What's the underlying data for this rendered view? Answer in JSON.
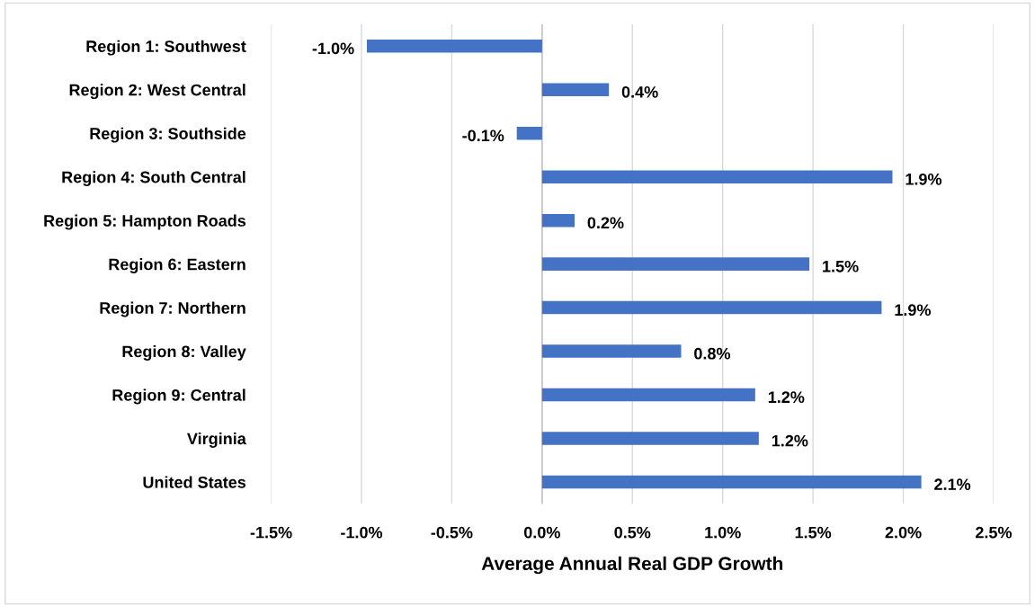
{
  "chart_data": {
    "type": "bar",
    "orientation": "horizontal",
    "xlabel": "Average Annual Real GDP Growth",
    "categories": [
      "Region 1: Southwest",
      "Region 2: West Central",
      "Region 3: Southside",
      "Region 4: South Central",
      "Region 5: Hampton Roads",
      "Region 6: Eastern",
      "Region 7: Northern",
      "Region 8: Valley",
      "Region 9: Central",
      "Virginia",
      "United States"
    ],
    "values": [
      -0.97,
      0.37,
      -0.14,
      1.94,
      0.18,
      1.48,
      1.88,
      0.77,
      1.18,
      1.2,
      2.1
    ],
    "value_labels": [
      "-1.0%",
      "0.4%",
      "-0.1%",
      "1.9%",
      "0.2%",
      "1.5%",
      "1.9%",
      "0.8%",
      "1.2%",
      "1.2%",
      "2.1%"
    ],
    "color": "#4472c4",
    "xlim": [
      -1.5,
      2.5
    ],
    "xticks": [
      {
        "value": -1.5,
        "label": "-1.5%"
      },
      {
        "value": -1.0,
        "label": "-1.0%"
      },
      {
        "value": -0.5,
        "label": "-0.5%"
      },
      {
        "value": 0.0,
        "label": "0.0%"
      },
      {
        "value": 0.5,
        "label": "0.5%"
      },
      {
        "value": 1.0,
        "label": "1.0%"
      },
      {
        "value": 1.5,
        "label": "1.5%"
      },
      {
        "value": 2.0,
        "label": "2.0%"
      },
      {
        "value": 2.5,
        "label": "2.5%"
      }
    ],
    "grid": "x"
  }
}
